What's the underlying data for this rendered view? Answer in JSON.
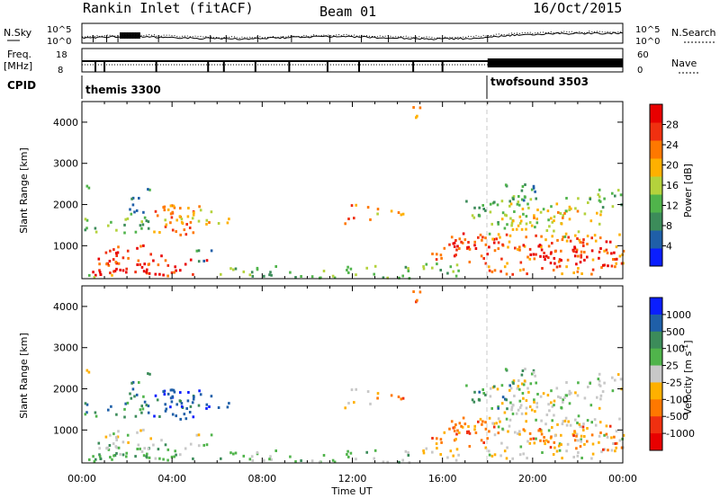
{
  "header": {
    "station": "Rankin Inlet (fitACF)",
    "beam": "Beam 01",
    "date": "16/Oct/2015"
  },
  "colors": {
    "power_scale": [
      "#0a1eff",
      "#1f5fa8",
      "#3c8c5a",
      "#50b44b",
      "#b4d23c",
      "#ffb000",
      "#ff7800",
      "#f03010",
      "#e80000"
    ],
    "velocity_scale": [
      "#0a1eff",
      "#1f5fa8",
      "#3c8c5a",
      "#50b44b",
      "#c8c8c8",
      "#ffb000",
      "#ff7800",
      "#f03010",
      "#e80000"
    ],
    "ground_scatter": "#c8c8c8"
  },
  "chart_data": [
    {
      "type": "line",
      "panel": "noise",
      "left_label": "N.Sky",
      "right_label": "N.Search",
      "left_ticks": [
        "10^5",
        "10^0"
      ],
      "right_ticks": [
        "10^5",
        "10^0"
      ]
    },
    {
      "type": "line",
      "panel": "frequency",
      "left_label": "Freq.",
      "left_unit": "[MHz]",
      "right_label": "Nave",
      "left_ticks": [
        "18",
        "8"
      ],
      "right_ticks": [
        "60",
        "0"
      ]
    },
    {
      "type": "table",
      "panel": "cpid",
      "label": "CPID",
      "segments": [
        {
          "start_hour": 0,
          "text": "themis 3300"
        },
        {
          "start_hour": 18,
          "text": "twofsound 3503"
        }
      ]
    },
    {
      "type": "heatmap",
      "panel": "power",
      "ylabel": "Slant Range [km]",
      "yticks": [
        "1000",
        "2000",
        "3000",
        "4000"
      ],
      "ylim": [
        200,
        4500
      ],
      "xlim": [
        0,
        24
      ],
      "colorbar_label": "Power [dB]",
      "colorbar_ticks": [
        "4",
        "8",
        "12",
        "16",
        "20",
        "24",
        "28"
      ],
      "colorbar_range": [
        0,
        32
      ]
    },
    {
      "type": "heatmap",
      "panel": "velocity",
      "ylabel": "Slant Range [km]",
      "yticks": [
        "1000",
        "2000",
        "3000",
        "4000"
      ],
      "ylim": [
        200,
        4500
      ],
      "xlim": [
        0,
        24
      ],
      "colorbar_label": "Velocity [m s",
      "colorbar_label_sup": "-1",
      "colorbar_label_end": "]",
      "colorbar_ticks": [
        "1000",
        "500",
        "100",
        "25",
        "-25",
        "-100",
        "-500",
        "-1000"
      ],
      "xticks": [
        "00:00",
        "04:00",
        "08:00",
        "12:00",
        "16:00",
        "20:00",
        "00:00"
      ],
      "xlabel": "Time UT"
    }
  ]
}
